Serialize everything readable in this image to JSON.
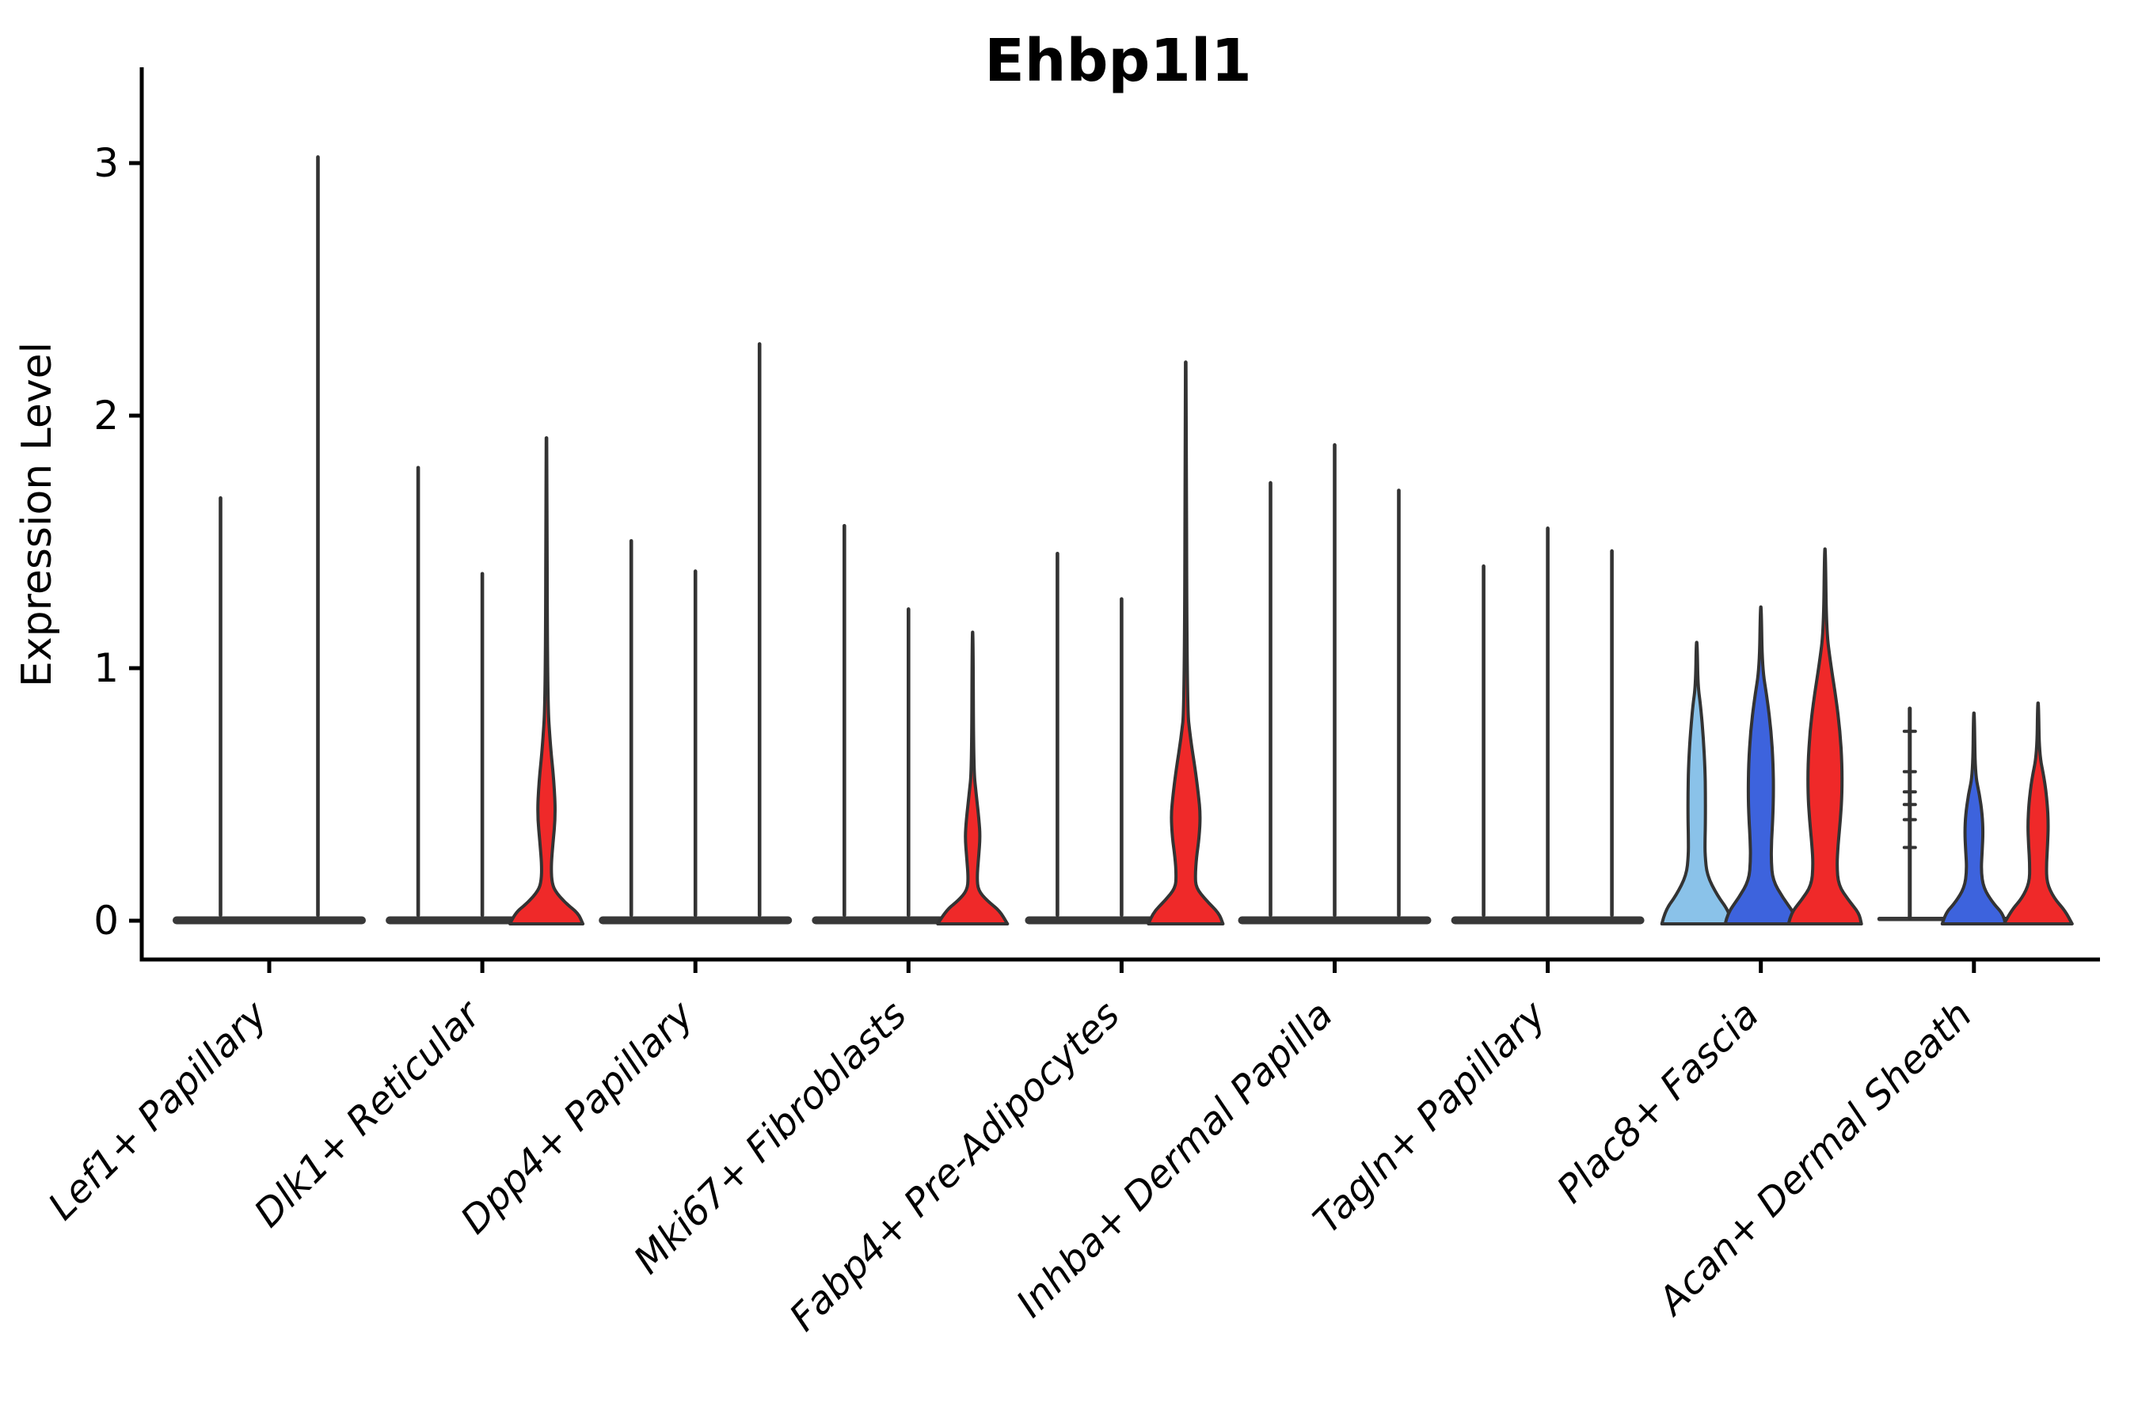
{
  "title": "Ehbp1l1",
  "y_axis": {
    "label": "Expression Level",
    "ticks": [
      0,
      1,
      2,
      3
    ]
  },
  "palette": {
    "red": "#EF2929",
    "blue": "#3D63DD",
    "lightblue": "#8AC2E9",
    "flat_fill": "#383838",
    "violin_stroke": "#333333",
    "axis": "#000000"
  },
  "chart_data": {
    "type": "violin",
    "title": "Ehbp1l1",
    "ylabel": "Expression Level",
    "ylim": [
      0,
      3.2
    ],
    "yticks": [
      0,
      1,
      2,
      3
    ],
    "grid": false,
    "legend": "none",
    "categories": [
      "Lef1+ Papillary",
      "Dlk1+ Reticular",
      "Dpp4+ Papillary",
      "Mki67+ Fibroblasts",
      "Fabp4+ Pre-Adipocytes",
      "Inhba+ Dermal Papilla",
      "Tagln+ Papillary",
      "Plac8+ Fascia",
      "Acan+ Dermal Sheath"
    ],
    "groups": [
      {
        "label": "Lef1+ Papillary",
        "thin_base": false,
        "violins": [
          {
            "kind": "spike",
            "color": "flat",
            "max": 1.68
          },
          {
            "kind": "spike",
            "color": "flat",
            "max": 3.03
          }
        ]
      },
      {
        "label": "Dlk1+ Reticular",
        "thin_base": false,
        "violins": [
          {
            "kind": "spike",
            "color": "flat",
            "max": 1.8
          },
          {
            "kind": "spike",
            "color": "flat",
            "max": 1.38
          },
          {
            "kind": "violin",
            "color": "red",
            "max": 1.91,
            "profile": [
              [
                0,
                46
              ],
              [
                0.03,
                40
              ],
              [
                0.07,
                24
              ],
              [
                0.12,
                10
              ],
              [
                0.16,
                6.5
              ],
              [
                0.22,
                6
              ],
              [
                0.3,
                8
              ],
              [
                0.42,
                11.5
              ],
              [
                0.55,
                9.5
              ],
              [
                0.69,
                5
              ],
              [
                0.88,
                1.2
              ],
              [
                1.91,
                0.6
              ]
            ]
          }
        ]
      },
      {
        "label": "Dpp4+ Papillary",
        "thin_base": false,
        "violins": [
          {
            "kind": "spike",
            "color": "flat",
            "max": 1.51
          },
          {
            "kind": "spike",
            "color": "flat",
            "max": 1.39
          },
          {
            "kind": "spike",
            "color": "flat",
            "max": 2.29
          }
        ]
      },
      {
        "label": "Mki67+ Fibroblasts",
        "thin_base": false,
        "violins": [
          {
            "kind": "spike",
            "color": "flat",
            "max": 1.57
          },
          {
            "kind": "spike",
            "color": "flat",
            "max": 1.24
          },
          {
            "kind": "violin",
            "color": "red",
            "max": 1.14,
            "profile": [
              [
                0,
                44
              ],
              [
                0.04,
                34
              ],
              [
                0.08,
                18
              ],
              [
                0.12,
                7
              ],
              [
                0.17,
                5.5
              ],
              [
                0.25,
                7.5
              ],
              [
                0.33,
                9.5
              ],
              [
                0.4,
                8
              ],
              [
                0.5,
                4.5
              ],
              [
                0.6,
                1.2
              ],
              [
                1.14,
                0.6
              ]
            ]
          }
        ]
      },
      {
        "label": "Fabp4+ Pre-Adipocytes",
        "thin_base": false,
        "violins": [
          {
            "kind": "spike",
            "color": "flat",
            "max": 1.46
          },
          {
            "kind": "spike",
            "color": "flat",
            "max": 1.28
          },
          {
            "kind": "violin",
            "color": "red",
            "max": 2.21,
            "profile": [
              [
                0,
                47
              ],
              [
                0.03,
                42
              ],
              [
                0.08,
                26
              ],
              [
                0.13,
                13
              ],
              [
                0.18,
                12
              ],
              [
                0.25,
                13.5
              ],
              [
                0.33,
                17
              ],
              [
                0.42,
                18.5
              ],
              [
                0.5,
                16
              ],
              [
                0.6,
                12
              ],
              [
                0.72,
                6
              ],
              [
                0.85,
                1.5
              ],
              [
                2.21,
                0.6
              ]
            ]
          }
        ]
      },
      {
        "label": "Inhba+ Dermal Papilla",
        "thin_base": false,
        "violins": [
          {
            "kind": "spike",
            "color": "flat",
            "max": 1.74
          },
          {
            "kind": "spike",
            "color": "flat",
            "max": 1.89
          },
          {
            "kind": "spike",
            "color": "flat",
            "max": 1.71
          }
        ]
      },
      {
        "label": "Tagln+ Papillary",
        "thin_base": false,
        "violins": [
          {
            "kind": "spike",
            "color": "flat",
            "max": 1.41
          },
          {
            "kind": "spike",
            "color": "flat",
            "max": 1.56
          },
          {
            "kind": "spike",
            "color": "flat",
            "max": 1.47
          }
        ]
      },
      {
        "label": "Plac8+ Fascia",
        "thin_base": true,
        "violins": [
          {
            "kind": "violin",
            "color": "lightblue",
            "max": 1.1,
            "profile": [
              [
                0,
                44
              ],
              [
                0.04,
                40
              ],
              [
                0.1,
                26
              ],
              [
                0.18,
                13
              ],
              [
                0.26,
                10.5
              ],
              [
                0.32,
                10.5
              ],
              [
                0.4,
                11
              ],
              [
                0.5,
                11
              ],
              [
                0.6,
                10.5
              ],
              [
                0.72,
                8.5
              ],
              [
                0.85,
                5
              ],
              [
                0.93,
                1.5
              ],
              [
                1.1,
                0.6
              ]
            ]
          },
          {
            "kind": "violin",
            "color": "blue",
            "max": 1.24,
            "profile": [
              [
                0,
                45
              ],
              [
                0.03,
                42
              ],
              [
                0.09,
                28
              ],
              [
                0.16,
                15
              ],
              [
                0.24,
                13
              ],
              [
                0.32,
                13.5
              ],
              [
                0.4,
                15
              ],
              [
                0.5,
                16
              ],
              [
                0.62,
                15.5
              ],
              [
                0.75,
                13
              ],
              [
                0.88,
                8
              ],
              [
                1.0,
                1.8
              ],
              [
                1.24,
                0.6
              ]
            ]
          },
          {
            "kind": "violin",
            "color": "red",
            "max": 1.47,
            "profile": [
              [
                0,
                46
              ],
              [
                0.03,
                43
              ],
              [
                0.08,
                30
              ],
              [
                0.14,
                17
              ],
              [
                0.22,
                15
              ],
              [
                0.3,
                16.5
              ],
              [
                0.4,
                19.5
              ],
              [
                0.5,
                21.5
              ],
              [
                0.62,
                21.5
              ],
              [
                0.75,
                19
              ],
              [
                0.88,
                14
              ],
              [
                1.02,
                7
              ],
              [
                1.15,
                1.8
              ],
              [
                1.47,
                0.6
              ]
            ]
          }
        ]
      },
      {
        "label": "Acan+ Dermal Sheath",
        "thin_base": true,
        "violins": [
          {
            "kind": "line",
            "color": "flat",
            "max": 0.84,
            "points": [
              0.75,
              0.59,
              0.51,
              0.46,
              0.4,
              0.29
            ]
          },
          {
            "kind": "violin",
            "color": "blue",
            "max": 0.82,
            "profile": [
              [
                0,
                40
              ],
              [
                0.03,
                36
              ],
              [
                0.07,
                24
              ],
              [
                0.13,
                12
              ],
              [
                0.2,
                9
              ],
              [
                0.28,
                10.5
              ],
              [
                0.35,
                11.5
              ],
              [
                0.42,
                10.5
              ],
              [
                0.5,
                7
              ],
              [
                0.58,
                1.5
              ],
              [
                0.82,
                0.6
              ]
            ]
          },
          {
            "kind": "violin",
            "color": "red",
            "max": 0.86,
            "profile": [
              [
                0,
                43
              ],
              [
                0.04,
                34
              ],
              [
                0.09,
                20
              ],
              [
                0.15,
                11
              ],
              [
                0.22,
                10.5
              ],
              [
                0.3,
                12
              ],
              [
                0.38,
                13
              ],
              [
                0.47,
                11.5
              ],
              [
                0.56,
                8
              ],
              [
                0.66,
                1.5
              ],
              [
                0.86,
                0.6
              ]
            ]
          }
        ]
      }
    ]
  }
}
